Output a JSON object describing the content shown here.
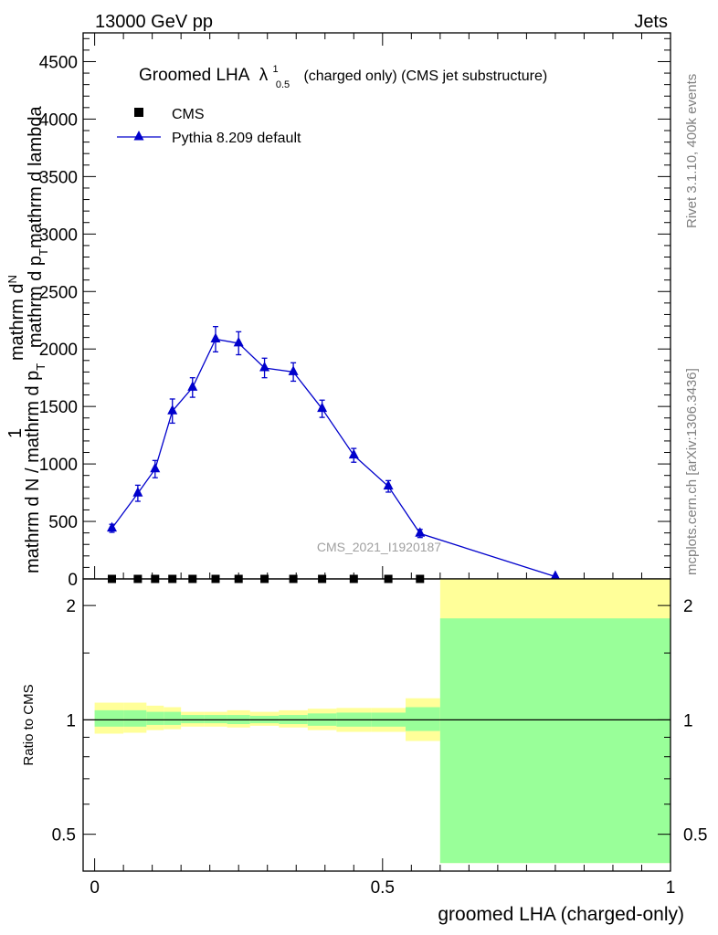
{
  "header": {
    "left": "13000 GeV pp",
    "right": "Jets"
  },
  "side_labels": {
    "rivet": "Rivet 3.1.10,  400k events",
    "mcplots": "mcplots.cern.ch [arXiv:1306.3436]"
  },
  "watermark": "CMS_2021_I1920187",
  "colors": {
    "mc": "#0000cc",
    "band_inner": "#99ff99",
    "band_outer": "#ffff99",
    "data": "#000000"
  },
  "chart_data": [
    {
      "type": "line",
      "title": "Groomed LHA",
      "title_symbol": "λ",
      "title_sup": "1",
      "title_sub": "0.5",
      "title_rest": "(charged only) (CMS jet substructure)",
      "ylabel_top": "mathrm d",
      "ylabel_top2": "N",
      "ylabel_top3": "mathrm d p",
      "ylabel_top4": "T",
      "ylabel_top5": "mathrm d lambda",
      "ylabel_one": "1",
      "ylabel_bottom": "mathrm d N / mathrm d p",
      "ylabel_bottom2": "T",
      "ylim": [
        0,
        4750
      ],
      "xlim": [
        -0.02,
        1.0
      ],
      "yticks": [
        0,
        500,
        1000,
        1500,
        2000,
        2500,
        3000,
        3500,
        4000,
        4500
      ],
      "ytick_labels": [
        "0",
        "500",
        "1000",
        "1500",
        "2000",
        "2500",
        "3000",
        "3500",
        "4000",
        "4500"
      ],
      "legend": [
        {
          "name": "CMS"
        },
        {
          "name": "Pythia 8.209 default"
        }
      ],
      "legend_position": "top-left",
      "series": [
        {
          "name": "CMS",
          "marker": "square",
          "x": [
            0.03,
            0.075,
            0.105,
            0.135,
            0.17,
            0.21,
            0.25,
            0.295,
            0.345,
            0.395,
            0.45,
            0.51,
            0.565
          ],
          "y": [
            0,
            0,
            0,
            0,
            0,
            0,
            0,
            0,
            0,
            0,
            0,
            0,
            0
          ]
        },
        {
          "name": "Pythia 8.209 default",
          "marker": "triangle",
          "x": [
            0.03,
            0.075,
            0.105,
            0.135,
            0.17,
            0.21,
            0.25,
            0.295,
            0.345,
            0.395,
            0.45,
            0.51,
            0.565,
            0.8
          ],
          "y": [
            440,
            745,
            955,
            1460,
            1665,
            2085,
            2050,
            1835,
            1800,
            1480,
            1075,
            805,
            395,
            20
          ],
          "err": [
            35,
            70,
            75,
            105,
            85,
            110,
            100,
            85,
            80,
            75,
            60,
            50,
            35,
            5
          ]
        }
      ]
    },
    {
      "type": "area",
      "ylabel": "Ratio to CMS",
      "xlabel": "groomed LHA (charged-only)",
      "yscale": "log",
      "ylim": [
        0.4,
        2.35
      ],
      "xlim": [
        -0.02,
        1.0
      ],
      "yticks": [
        0.5,
        1,
        2
      ],
      "ytick_labels": [
        "0.5",
        "1",
        "2"
      ],
      "xticks": [
        0,
        0.5,
        1
      ],
      "xtick_labels": [
        "0",
        "0.5",
        "1"
      ],
      "bands": [
        {
          "x0": 0.0,
          "x1": 0.05,
          "inner": [
            0.96,
            1.06
          ],
          "outer": [
            0.92,
            1.11
          ]
        },
        {
          "x0": 0.05,
          "x1": 0.09,
          "inner": [
            0.96,
            1.06
          ],
          "outer": [
            0.925,
            1.11
          ]
        },
        {
          "x0": 0.09,
          "x1": 0.12,
          "inner": [
            0.97,
            1.05
          ],
          "outer": [
            0.94,
            1.09
          ]
        },
        {
          "x0": 0.12,
          "x1": 0.15,
          "inner": [
            0.97,
            1.05
          ],
          "outer": [
            0.945,
            1.08
          ]
        },
        {
          "x0": 0.15,
          "x1": 0.19,
          "inner": [
            0.98,
            1.03
          ],
          "outer": [
            0.96,
            1.05
          ]
        },
        {
          "x0": 0.19,
          "x1": 0.23,
          "inner": [
            0.98,
            1.03
          ],
          "outer": [
            0.96,
            1.05
          ]
        },
        {
          "x0": 0.23,
          "x1": 0.27,
          "inner": [
            0.975,
            1.03
          ],
          "outer": [
            0.955,
            1.06
          ]
        },
        {
          "x0": 0.27,
          "x1": 0.32,
          "inner": [
            0.98,
            1.025
          ],
          "outer": [
            0.965,
            1.05
          ]
        },
        {
          "x0": 0.32,
          "x1": 0.37,
          "inner": [
            0.975,
            1.03
          ],
          "outer": [
            0.955,
            1.06
          ]
        },
        {
          "x0": 0.37,
          "x1": 0.42,
          "inner": [
            0.965,
            1.04
          ],
          "outer": [
            0.94,
            1.07
          ]
        },
        {
          "x0": 0.42,
          "x1": 0.48,
          "inner": [
            0.96,
            1.045
          ],
          "outer": [
            0.93,
            1.075
          ]
        },
        {
          "x0": 0.48,
          "x1": 0.54,
          "inner": [
            0.96,
            1.045
          ],
          "outer": [
            0.93,
            1.075
          ]
        },
        {
          "x0": 0.54,
          "x1": 0.6,
          "inner": [
            0.935,
            1.08
          ],
          "outer": [
            0.88,
            1.14
          ]
        },
        {
          "x0": 0.6,
          "x1": 1.0,
          "inner": [
            0.42,
            1.85
          ],
          "outer": [
            0.42,
            2.35
          ]
        }
      ],
      "series": [
        {
          "name": "Pythia 8.209 default",
          "x": [
            0.0,
            1.0
          ],
          "y": [
            1,
            1
          ]
        }
      ]
    }
  ]
}
